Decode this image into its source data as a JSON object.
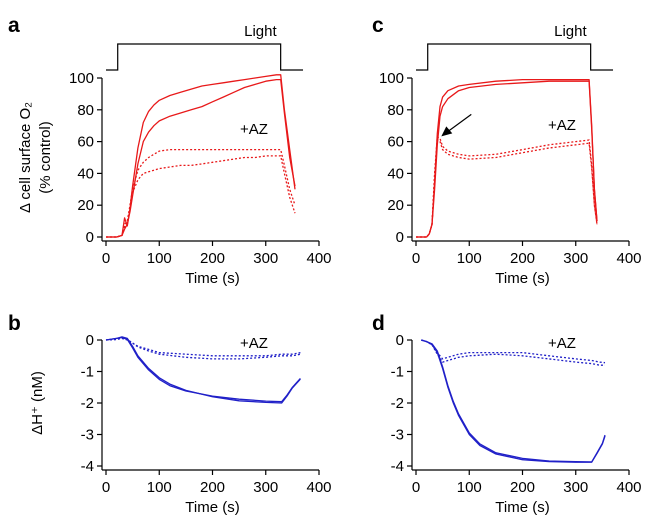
{
  "chart_data": [
    {
      "panel": "a",
      "type": "line",
      "xlabel": "Time (s)",
      "ylabel": "Δ cell surface O₂",
      "ylabel2": "(% control)",
      "xlim": [
        0,
        400
      ],
      "ylim": [
        0,
        100
      ],
      "xticks": [
        "0",
        "100",
        "200",
        "300",
        "400"
      ],
      "yticks": [
        "0",
        "20",
        "40",
        "60",
        "80",
        "100"
      ],
      "light_label": "Light",
      "light_on": [
        22,
        328
      ],
      "annotation": "+AZ",
      "color": "#e8191a",
      "series": [
        {
          "style": "solid",
          "x": [
            0,
            20,
            30,
            35,
            40,
            45,
            50,
            60,
            70,
            80,
            90,
            100,
            120,
            140,
            160,
            180,
            200,
            220,
            240,
            260,
            280,
            300,
            320,
            328,
            335,
            345,
            355
          ],
          "y": [
            0,
            0,
            1,
            12,
            7,
            18,
            32,
            56,
            72,
            79,
            83,
            86,
            89,
            91,
            93,
            95,
            96,
            97,
            98,
            99,
            100,
            101,
            102,
            102,
            80,
            55,
            30
          ]
        },
        {
          "style": "solid",
          "x": [
            0,
            20,
            30,
            35,
            40,
            45,
            50,
            60,
            70,
            80,
            90,
            100,
            120,
            140,
            160,
            180,
            200,
            220,
            240,
            260,
            280,
            300,
            320,
            328,
            335,
            345,
            355
          ],
          "y": [
            0,
            0,
            1,
            5,
            8,
            16,
            26,
            46,
            60,
            66,
            70,
            73,
            76,
            78,
            80,
            82,
            85,
            88,
            91,
            94,
            96,
            98,
            99,
            99,
            78,
            50,
            32
          ]
        },
        {
          "style": "dotted",
          "x": [
            0,
            20,
            30,
            35,
            40,
            45,
            50,
            60,
            70,
            80,
            90,
            100,
            120,
            140,
            160,
            180,
            200,
            220,
            240,
            260,
            280,
            300,
            320,
            328,
            335,
            345,
            355
          ],
          "y": [
            0,
            0,
            1,
            8,
            10,
            20,
            30,
            42,
            47,
            50,
            52,
            54,
            55,
            55,
            55,
            55,
            55,
            55,
            55,
            55,
            55,
            55,
            55,
            55,
            45,
            30,
            20
          ]
        },
        {
          "style": "dotted",
          "x": [
            0,
            20,
            30,
            35,
            40,
            45,
            50,
            60,
            70,
            80,
            90,
            100,
            120,
            140,
            160,
            180,
            200,
            220,
            240,
            260,
            280,
            300,
            320,
            328,
            335,
            345,
            355
          ],
          "y": [
            0,
            0,
            1,
            6,
            9,
            18,
            28,
            36,
            40,
            41,
            42,
            43,
            44,
            45,
            45,
            46,
            47,
            48,
            49,
            50,
            50,
            51,
            51,
            51,
            40,
            25,
            15
          ]
        }
      ]
    },
    {
      "panel": "b",
      "type": "line",
      "xlabel": "Time (s)",
      "ylabel": "ΔH⁺ (nM)",
      "xlim": [
        0,
        400
      ],
      "ylim": [
        -4,
        0
      ],
      "xticks": [
        "0",
        "100",
        "200",
        "300",
        "400"
      ],
      "yticks": [
        "0",
        "-1",
        "-2",
        "-3",
        "-4"
      ],
      "annotation": "+AZ",
      "color": "#2020c8",
      "series": [
        {
          "style": "solid",
          "x": [
            0,
            20,
            30,
            40,
            50,
            60,
            80,
            100,
            120,
            150,
            200,
            250,
            300,
            330,
            340,
            350,
            365
          ],
          "y": [
            0,
            0.05,
            0.08,
            0.02,
            -0.25,
            -0.55,
            -0.95,
            -1.25,
            -1.45,
            -1.62,
            -1.78,
            -1.88,
            -1.94,
            -1.96,
            -1.75,
            -1.5,
            -1.22
          ]
        },
        {
          "style": "solid",
          "x": [
            0,
            20,
            30,
            40,
            50,
            60,
            80,
            100,
            120,
            150,
            200,
            250,
            300,
            330,
            340,
            350,
            365
          ],
          "y": [
            0,
            0.05,
            0.1,
            0.05,
            -0.2,
            -0.5,
            -0.9,
            -1.2,
            -1.4,
            -1.6,
            -1.8,
            -1.93,
            -1.98,
            -2.0,
            -1.78,
            -1.52,
            -1.24
          ]
        },
        {
          "style": "dotted",
          "x": [
            0,
            20,
            30,
            40,
            50,
            60,
            80,
            100,
            150,
            200,
            250,
            300,
            330,
            350,
            365
          ],
          "y": [
            0,
            0.02,
            0.05,
            0.02,
            -0.1,
            -0.2,
            -0.3,
            -0.4,
            -0.45,
            -0.5,
            -0.5,
            -0.5,
            -0.45,
            -0.45,
            -0.4
          ]
        },
        {
          "style": "dotted",
          "x": [
            0,
            20,
            30,
            40,
            50,
            60,
            80,
            100,
            150,
            200,
            250,
            300,
            330,
            350,
            365
          ],
          "y": [
            0,
            0.02,
            0.05,
            0,
            -0.1,
            -0.22,
            -0.35,
            -0.45,
            -0.55,
            -0.6,
            -0.6,
            -0.55,
            -0.5,
            -0.5,
            -0.45
          ]
        }
      ]
    },
    {
      "panel": "c",
      "type": "line",
      "xlim": [
        0,
        400
      ],
      "ylim": [
        0,
        100
      ],
      "xlabel": "Time (s)",
      "xticks": [
        "0",
        "100",
        "200",
        "300",
        "400"
      ],
      "yticks": [
        "0",
        "20",
        "40",
        "60",
        "80",
        "100"
      ],
      "light_label": "Light",
      "light_on": [
        22,
        328
      ],
      "annotation": "+AZ",
      "arrow_at": {
        "x": 40,
        "y": 62
      },
      "color": "#e8191a",
      "series": [
        {
          "style": "solid",
          "x": [
            0,
            20,
            25,
            30,
            35,
            40,
            45,
            50,
            60,
            80,
            100,
            150,
            200,
            250,
            300,
            325,
            330,
            335,
            340
          ],
          "y": [
            0,
            0,
            2,
            8,
            35,
            65,
            82,
            88,
            92,
            95,
            96,
            98,
            99,
            99,
            99,
            99,
            70,
            30,
            10
          ]
        },
        {
          "style": "solid",
          "x": [
            0,
            20,
            25,
            30,
            35,
            40,
            45,
            50,
            60,
            80,
            100,
            150,
            200,
            250,
            300,
            325,
            330,
            335,
            340
          ],
          "y": [
            0,
            0,
            2,
            8,
            30,
            58,
            76,
            82,
            87,
            92,
            94,
            96,
            97,
            98,
            98,
            98,
            68,
            30,
            10
          ]
        },
        {
          "style": "dotted",
          "x": [
            0,
            20,
            25,
            30,
            35,
            40,
            45,
            50,
            60,
            80,
            100,
            150,
            200,
            250,
            300,
            325,
            330,
            335,
            340
          ],
          "y": [
            0,
            0,
            2,
            8,
            40,
            63,
            62,
            57,
            54,
            52,
            51,
            52,
            55,
            58,
            60,
            61,
            45,
            20,
            8
          ]
        },
        {
          "style": "dotted",
          "x": [
            0,
            20,
            25,
            30,
            35,
            40,
            45,
            50,
            60,
            80,
            100,
            150,
            200,
            250,
            300,
            325,
            330,
            335,
            340
          ],
          "y": [
            0,
            0,
            2,
            8,
            38,
            61,
            60,
            55,
            52,
            50,
            49,
            50,
            53,
            56,
            58,
            59,
            43,
            20,
            8
          ]
        }
      ]
    },
    {
      "panel": "d",
      "type": "line",
      "xlim": [
        0,
        400
      ],
      "ylim": [
        -4,
        0
      ],
      "xlabel": "Time (s)",
      "xticks": [
        "0",
        "100",
        "200",
        "300",
        "400"
      ],
      "yticks": [
        "0",
        "-1",
        "-2",
        "-3",
        "-4"
      ],
      "annotation": "+AZ",
      "color": "#2020c8",
      "series": [
        {
          "style": "solid",
          "x": [
            10,
            20,
            30,
            40,
            50,
            60,
            70,
            80,
            100,
            120,
            150,
            200,
            250,
            300,
            330,
            340,
            350,
            355
          ],
          "y": [
            0,
            -0.05,
            -0.15,
            -0.4,
            -0.9,
            -1.5,
            -2.0,
            -2.4,
            -3.0,
            -3.35,
            -3.62,
            -3.8,
            -3.86,
            -3.88,
            -3.88,
            -3.6,
            -3.3,
            -3.05
          ]
        },
        {
          "style": "solid",
          "x": [
            10,
            20,
            30,
            40,
            50,
            60,
            70,
            80,
            100,
            120,
            150,
            200,
            250,
            300,
            330,
            340,
            350,
            355
          ],
          "y": [
            0,
            -0.05,
            -0.12,
            -0.35,
            -0.85,
            -1.45,
            -1.95,
            -2.35,
            -2.95,
            -3.3,
            -3.58,
            -3.76,
            -3.84,
            -3.86,
            -3.87,
            -3.58,
            -3.28,
            -3.02
          ]
        },
        {
          "style": "dotted",
          "x": [
            10,
            20,
            30,
            40,
            50,
            60,
            80,
            100,
            150,
            200,
            250,
            300,
            330,
            345,
            355
          ],
          "y": [
            0,
            -0.05,
            -0.15,
            -0.4,
            -0.6,
            -0.55,
            -0.45,
            -0.4,
            -0.4,
            -0.4,
            -0.5,
            -0.6,
            -0.65,
            -0.7,
            -0.72
          ]
        },
        {
          "style": "dotted",
          "x": [
            10,
            20,
            30,
            40,
            50,
            60,
            80,
            100,
            150,
            200,
            250,
            300,
            330,
            345,
            355
          ],
          "y": [
            0,
            -0.05,
            -0.15,
            -0.45,
            -0.7,
            -0.65,
            -0.55,
            -0.5,
            -0.45,
            -0.5,
            -0.6,
            -0.7,
            -0.75,
            -0.8,
            -0.8
          ]
        }
      ]
    }
  ]
}
